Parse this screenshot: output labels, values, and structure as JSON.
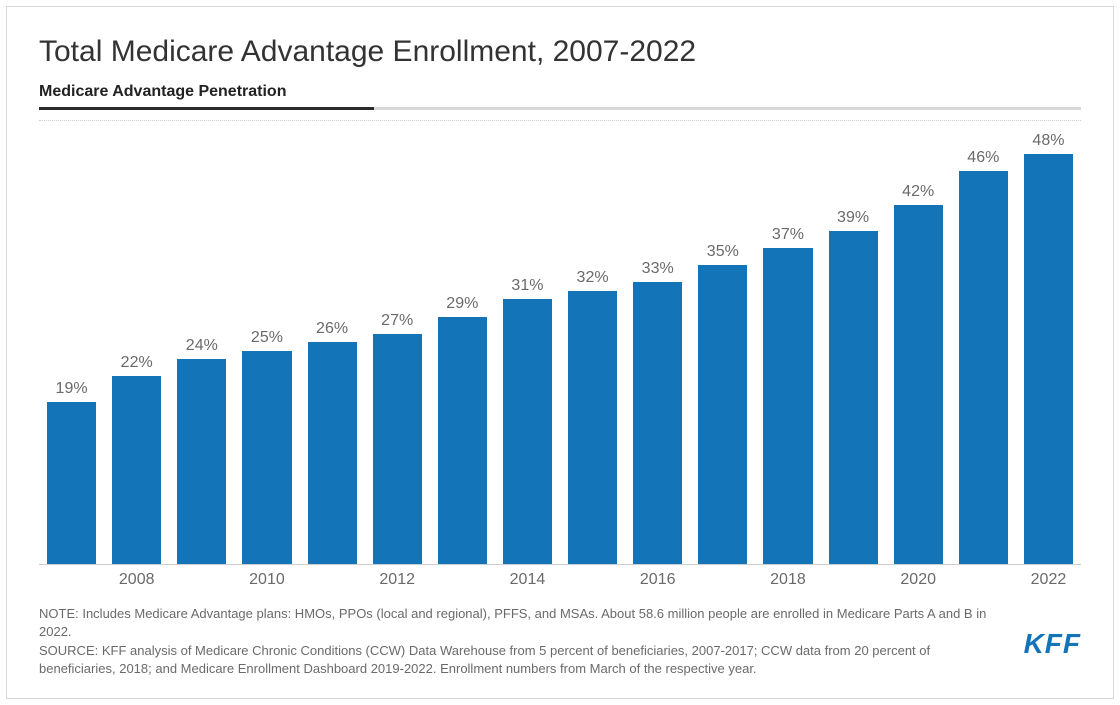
{
  "title": "Total Medicare Advantage Enrollment, 2007-2022",
  "subtitle": "Medicare Advantage Penetration",
  "chart": {
    "type": "bar",
    "bar_color": "#1375b7",
    "value_label_color": "#6a6a6a",
    "axis_label_color": "#6a6a6a",
    "grid_color": "#d0d0d0",
    "background_color": "#ffffff",
    "label_fontsize": 16,
    "ymax": 52,
    "years": [
      2007,
      2008,
      2009,
      2010,
      2011,
      2012,
      2013,
      2014,
      2015,
      2016,
      2017,
      2018,
      2019,
      2020,
      2021,
      2022
    ],
    "values": [
      19,
      22,
      24,
      25,
      26,
      27,
      29,
      31,
      32,
      33,
      35,
      37,
      39,
      42,
      46,
      48
    ],
    "labels": [
      "19%",
      "22%",
      "24%",
      "25%",
      "26%",
      "27%",
      "29%",
      "31%",
      "32%",
      "33%",
      "35%",
      "37%",
      "39%",
      "42%",
      "46%",
      "48%"
    ],
    "x_tick_years": [
      2008,
      2010,
      2012,
      2014,
      2016,
      2018,
      2020,
      2022
    ]
  },
  "note": "NOTE: Includes Medicare Advantage plans: HMOs, PPOs (local and regional), PFFS, and MSAs. About 58.6 million people are enrolled in Medicare Parts A and B in 2022.",
  "source": "SOURCE: KFF analysis of Medicare Chronic Conditions (CCW) Data Warehouse from 5 percent of beneficiaries, 2007-2017; CCW data from 20 percent of beneficiaries, 2018; and Medicare Enrollment Dashboard 2019-2022. Enrollment numbers from March of the respective year.",
  "logo": "KFF"
}
